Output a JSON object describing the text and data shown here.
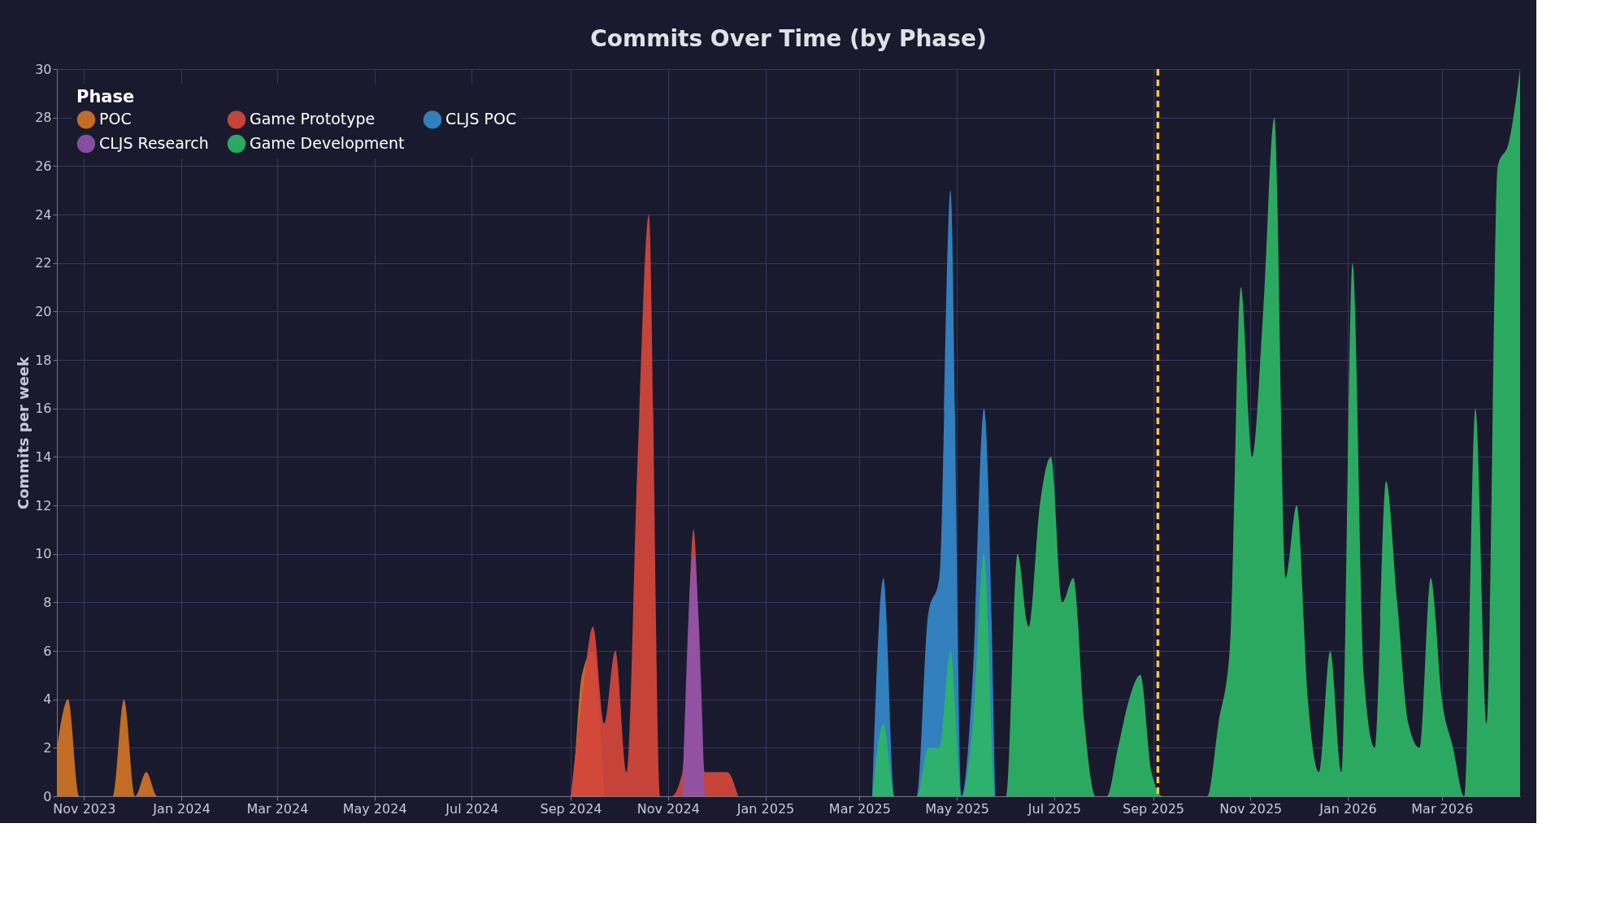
{
  "chart_data": {
    "type": "area",
    "title": "Commits Over Time (by Phase)",
    "ylabel": "Commits per week",
    "legend_title": "Phase",
    "legend": "top left",
    "grid": true,
    "xlim": [
      "2023-10-15",
      "2026-04-19"
    ],
    "xticks": [
      {
        "value": "2023-11-01",
        "label": "Nov 2023"
      },
      {
        "value": "2024-01-01",
        "label": "Jan 2024"
      },
      {
        "value": "2024-03-01",
        "label": "Mar 2024"
      },
      {
        "value": "2024-05-01",
        "label": "May 2024"
      },
      {
        "value": "2024-07-01",
        "label": "Jul 2024"
      },
      {
        "value": "2024-09-01",
        "label": "Sep 2024"
      },
      {
        "value": "2024-11-01",
        "label": "Nov 2024"
      },
      {
        "value": "2025-01-01",
        "label": "Jan 2025"
      },
      {
        "value": "2025-03-01",
        "label": "Mar 2025"
      },
      {
        "value": "2025-05-01",
        "label": "May 2025"
      },
      {
        "value": "2025-07-01",
        "label": "Jul 2025"
      },
      {
        "value": "2025-09-01",
        "label": "Sep 2025"
      },
      {
        "value": "2025-11-01",
        "label": "Nov 2025"
      },
      {
        "value": "2026-01-01",
        "label": "Jan 2026"
      },
      {
        "value": "2026-03-01",
        "label": "Mar 2026"
      }
    ],
    "ylim": [
      0,
      30
    ],
    "yticks": [
      0,
      2,
      4,
      6,
      8,
      10,
      12,
      14,
      16,
      18,
      20,
      22,
      24,
      26,
      28,
      30
    ],
    "ref_lines": [
      {
        "axis": "x",
        "value": "2025-09-04",
        "color": "#f5c842",
        "line_style": "dashed"
      }
    ],
    "series": [
      {
        "name": "POC",
        "color": "#cf7425",
        "x": [
          "2023-10-15",
          "2023-10-22",
          "2023-10-29",
          "2023-11-19",
          "2023-11-26",
          "2023-12-03",
          "2023-12-10",
          "2023-12-17",
          "2024-09-01",
          "2024-09-08",
          "2024-09-15",
          "2024-09-22"
        ],
        "values": [
          2,
          4,
          0,
          0,
          4,
          0,
          1,
          0,
          0,
          5,
          6,
          0
        ]
      },
      {
        "name": "Game Prototype",
        "color": "#d4463b",
        "x": [
          "2024-09-01",
          "2024-09-08",
          "2024-09-15",
          "2024-09-22",
          "2024-09-29",
          "2024-10-06",
          "2024-10-13",
          "2024-10-20",
          "2024-10-27",
          "2024-11-03",
          "2024-11-10",
          "2024-11-17",
          "2024-11-24",
          "2024-12-01",
          "2024-12-08",
          "2024-12-15"
        ],
        "values": [
          0,
          4,
          7,
          3,
          6,
          1,
          14,
          24,
          0,
          0,
          1,
          11,
          1,
          1,
          1,
          0
        ]
      },
      {
        "name": "CLJS POC",
        "color": "#3388c9",
        "x": [
          "2025-03-09",
          "2025-03-16",
          "2025-03-23",
          "2025-04-06",
          "2025-04-13",
          "2025-04-20",
          "2025-04-27",
          "2025-05-04",
          "2025-05-11",
          "2025-05-18",
          "2025-05-25"
        ],
        "values": [
          0,
          9,
          0,
          0,
          7.5,
          9,
          25,
          0,
          5,
          16,
          0
        ]
      },
      {
        "name": "CLJS Research",
        "color": "#8e52aa",
        "x": [
          "2024-11-10",
          "2024-11-17",
          "2024-11-24"
        ],
        "values": [
          0,
          10,
          0
        ]
      },
      {
        "name": "Game Development",
        "color": "#2cb566",
        "x": [
          "2025-03-09",
          "2025-03-16",
          "2025-03-23",
          "2025-04-06",
          "2025-04-13",
          "2025-04-20",
          "2025-04-27",
          "2025-05-04",
          "2025-05-11",
          "2025-05-18",
          "2025-05-25",
          "2025-06-01",
          "2025-06-08",
          "2025-06-15",
          "2025-06-22",
          "2025-06-29",
          "2025-07-06",
          "2025-07-13",
          "2025-07-20",
          "2025-07-27",
          "2025-08-03",
          "2025-08-10",
          "2025-08-17",
          "2025-08-24",
          "2025-08-31",
          "2025-09-07",
          "2025-10-05",
          "2025-10-12",
          "2025-10-19",
          "2025-10-26",
          "2025-11-02",
          "2025-11-09",
          "2025-11-16",
          "2025-11-23",
          "2025-11-30",
          "2025-12-07",
          "2025-12-14",
          "2025-12-21",
          "2025-12-28",
          "2026-01-04",
          "2026-01-11",
          "2026-01-18",
          "2026-01-25",
          "2026-02-01",
          "2026-02-08",
          "2026-02-15",
          "2026-02-22",
          "2026-03-01",
          "2026-03-08",
          "2026-03-15",
          "2026-03-22",
          "2026-03-29",
          "2026-04-05",
          "2026-04-12",
          "2026-04-19"
        ],
        "values": [
          0,
          3,
          0,
          0,
          2,
          2,
          6,
          0,
          3,
          10,
          0,
          0,
          10,
          7,
          12,
          14,
          8,
          9,
          3,
          0,
          0,
          2,
          4,
          5,
          1,
          0,
          0,
          3,
          6,
          21,
          14,
          20,
          28,
          9,
          12,
          4,
          1,
          6,
          1,
          22,
          5,
          2,
          13,
          8,
          3,
          2,
          9,
          4,
          2,
          0,
          16,
          3,
          26,
          27,
          30
        ]
      }
    ]
  }
}
